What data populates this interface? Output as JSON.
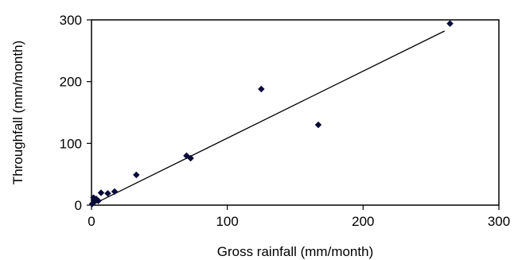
{
  "chart_data": {
    "type": "scatter",
    "title": "",
    "xlabel": "Gross rainfall (mm/month)",
    "ylabel": "Throughfall (mm/month)",
    "xlim": [
      0,
      300
    ],
    "ylim": [
      0,
      300
    ],
    "xticks": [
      0,
      100,
      200,
      300
    ],
    "yticks": [
      0,
      100,
      200,
      300
    ],
    "grid": false,
    "legend": "none",
    "marker": "diamond",
    "marker_color": "#0b0b3a",
    "series": [
      {
        "x": [
          0.5,
          1.5,
          2.5,
          3.5,
          5,
          7,
          12,
          17,
          33,
          70,
          73,
          125,
          167,
          264
        ],
        "y": [
          2,
          12,
          8,
          10,
          7,
          20,
          19,
          22,
          49,
          80,
          76,
          188,
          130,
          294
        ]
      }
    ],
    "trendline": {
      "type": "linear",
      "x": [
        0,
        260
      ],
      "y": [
        0,
        282
      ]
    }
  }
}
